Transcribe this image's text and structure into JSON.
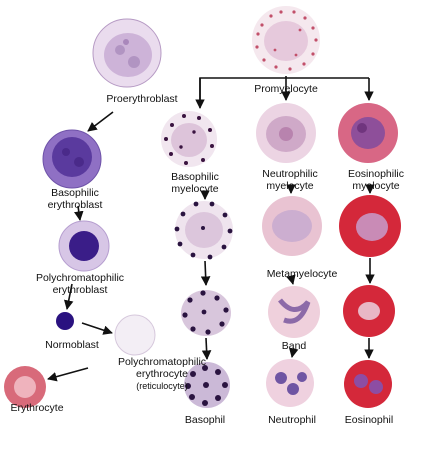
{
  "labels": {
    "proerythroblast": "Proerythroblast",
    "promyelocyte": "Promyelocyte",
    "basophilic_erythroblast": [
      "Basophilic",
      "erythroblast"
    ],
    "polychromatophilic_erythroblast": [
      "Polychromatophilic",
      "erythroblast"
    ],
    "normoblast": "Normoblast",
    "reticulocyte": [
      "Polychromatophilic",
      "erythrocyte",
      "(reticulocyte)"
    ],
    "erythrocyte": "Erythrocyte",
    "basophilic_myelocyte": [
      "Basophilic",
      "myelocyte"
    ],
    "neutrophilic_myelocyte": [
      "Neutrophilic",
      "myelocyte"
    ],
    "eosinophilic_myelocyte": [
      "Eosinophilic",
      "myelocyte"
    ],
    "metamyelocyte": "Metamyelocyte",
    "band": "Band",
    "basophil": "Basophil",
    "neutrophil": "Neutrophil",
    "eosinophil": "Eosinophil"
  },
  "colors": {
    "erythroid_cytoplasm": "#c9a8d6",
    "erythroid_nucleus": "#4a2a8a",
    "normoblast_nucleus": "#2a1280",
    "erythrocyte": "#d86a7a",
    "neutrophil_granule": "#c97a9a",
    "eosinophil_granule": "#d4283a",
    "basophil_granule": "#2a1440",
    "arrow": "#111111"
  }
}
